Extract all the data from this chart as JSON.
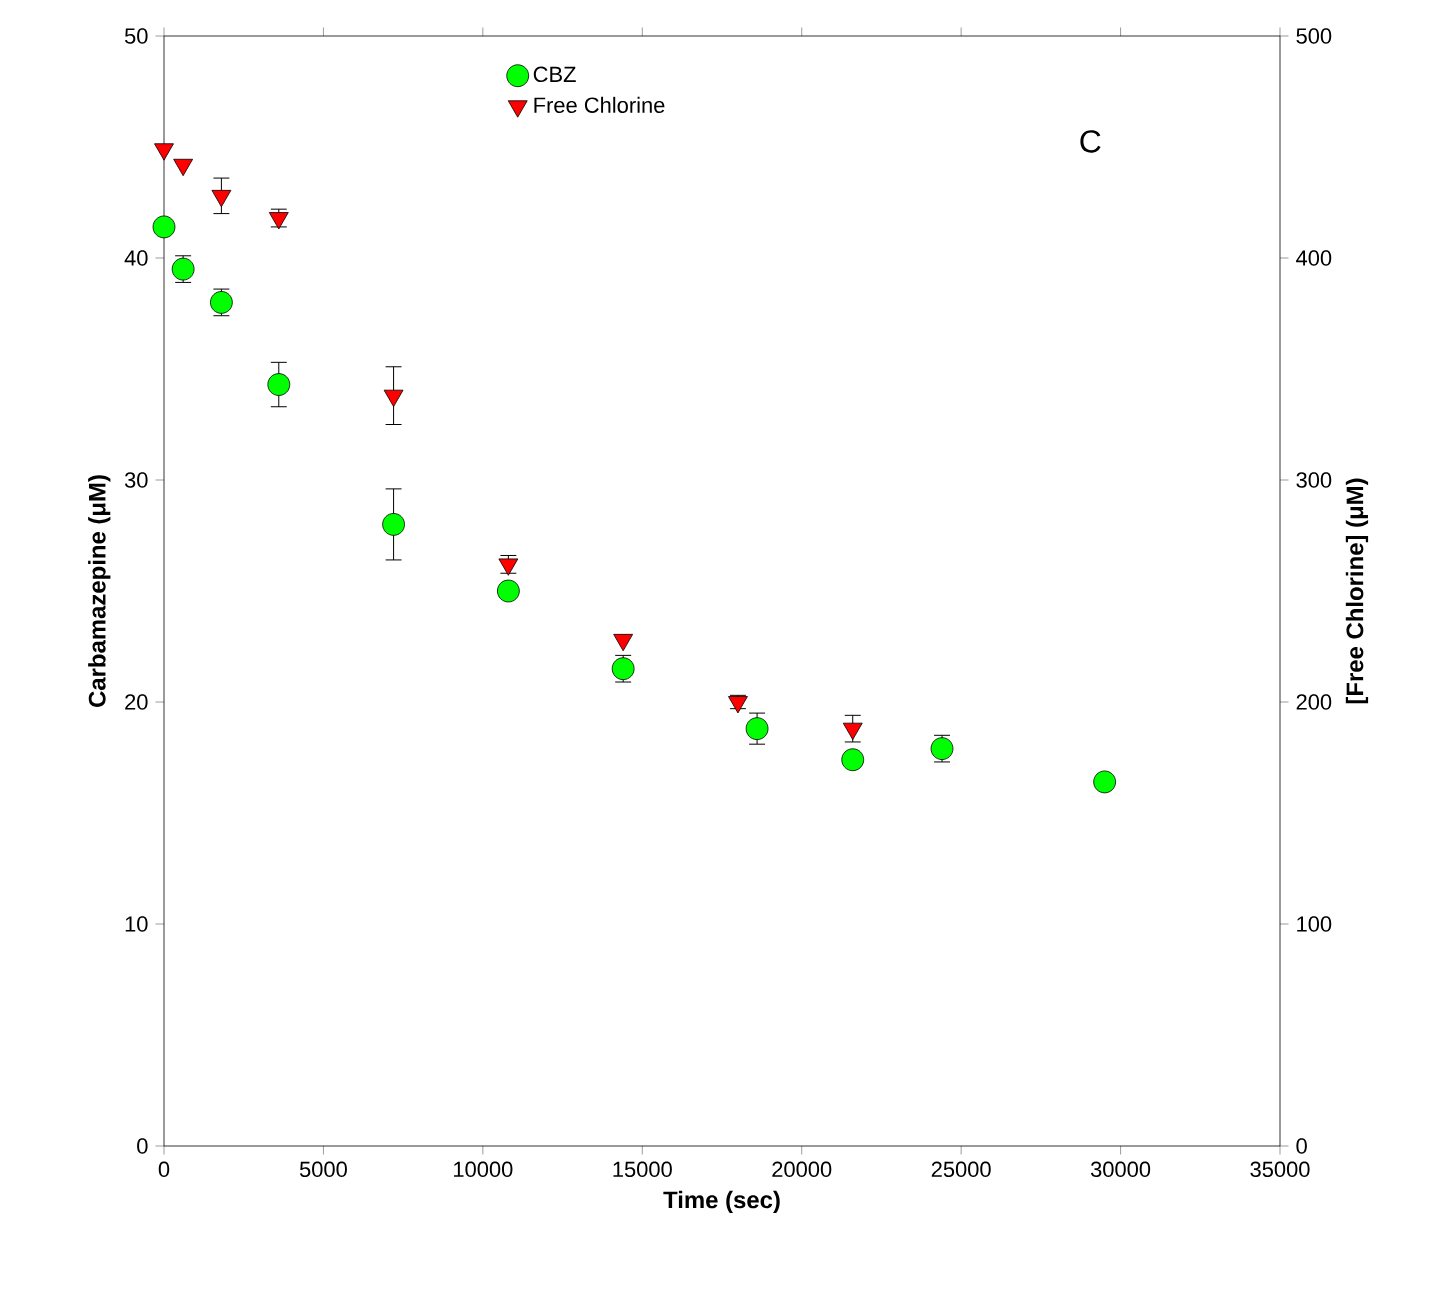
{
  "chart_data": {
    "type": "scatter",
    "xlabel": "Time (sec)",
    "ylabel": "Carbamazepine (μM)",
    "y2label": "[Free Chlorine] (μM)",
    "xlim": [
      0,
      35000
    ],
    "xticks": [
      0,
      5000,
      10000,
      15000,
      20000,
      25000,
      30000,
      35000
    ],
    "ylim": [
      0,
      50
    ],
    "yticks": [
      0,
      10,
      20,
      30,
      40,
      50
    ],
    "y2lim": [
      0,
      500
    ],
    "y2ticks": [
      0,
      100,
      200,
      300,
      400,
      500
    ],
    "legend": "top",
    "grid": false,
    "annotations": [
      "C"
    ],
    "series": [
      {
        "name": "CBZ",
        "color": "#00ff00",
        "marker": "circle",
        "x": [
          0,
          600,
          1800,
          3600,
          7200,
          10800,
          14400,
          18600,
          21600,
          24400,
          29500
        ],
        "values": [
          41.4,
          39.5,
          38.0,
          34.3,
          28.0,
          25.0,
          21.5,
          18.8,
          17.4,
          17.9,
          16.4
        ],
        "errors": [
          null,
          0.6,
          0.6,
          1.0,
          1.6,
          0.3,
          0.6,
          0.7,
          0.3,
          0.6,
          0.3
        ]
      },
      {
        "name": "Free Chlorine",
        "color": "#ff0000",
        "marker": "triangle",
        "axis": "y2",
        "x": [
          0,
          600,
          1800,
          3600,
          7200,
          10800,
          14400,
          18000,
          21600
        ],
        "values": [
          449,
          442,
          428,
          418,
          338,
          262,
          228,
          200,
          188
        ],
        "errors": [
          null,
          null,
          8,
          4,
          13,
          4,
          null,
          3,
          6
        ]
      }
    ]
  }
}
